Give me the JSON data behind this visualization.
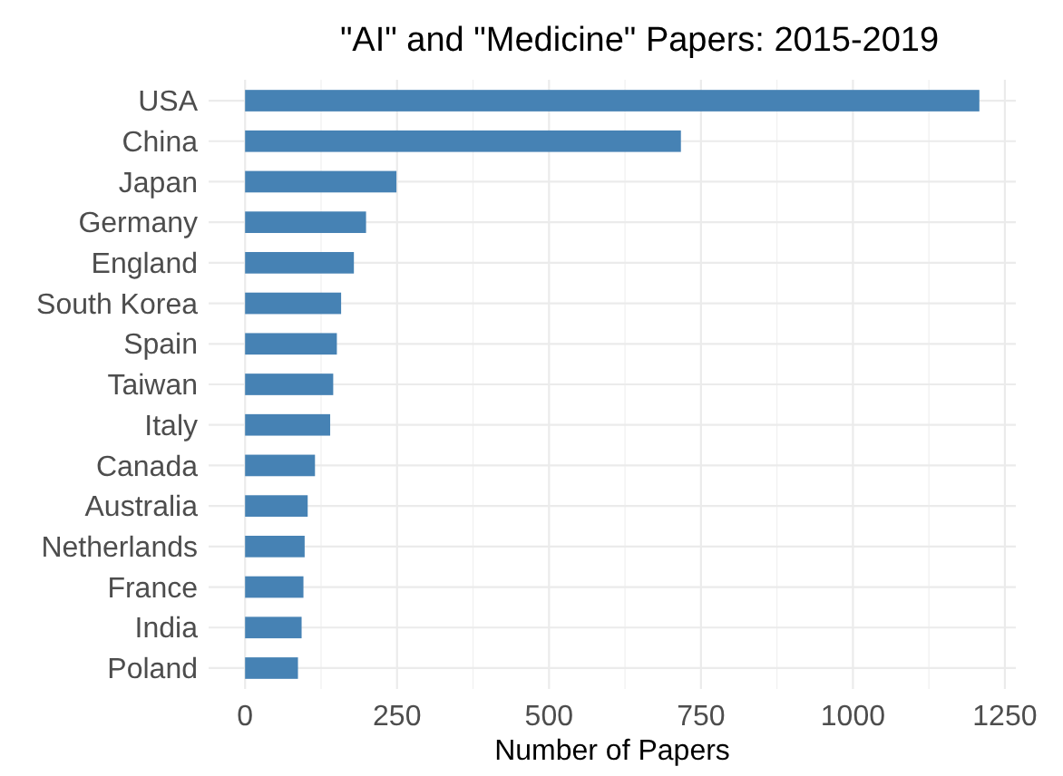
{
  "chart_data": {
    "type": "bar",
    "orientation": "horizontal",
    "title": "\"AI\" and \"Medicine\" Papers: 2015-2019",
    "xlabel": "Number of Papers",
    "categories": [
      "USA",
      "China",
      "Japan",
      "Germany",
      "England",
      "South Korea",
      "Spain",
      "Taiwan",
      "Italy",
      "Canada",
      "Australia",
      "Netherlands",
      "France",
      "India",
      "Poland"
    ],
    "values": [
      1208,
      717,
      249,
      199,
      179,
      158,
      151,
      145,
      140,
      115,
      103,
      98,
      96,
      93,
      87
    ],
    "color": "#4682b4",
    "xlim": [
      -60,
      1268
    ],
    "xticks": [
      0,
      250,
      500,
      750,
      1000,
      1250
    ],
    "grid": true
  }
}
